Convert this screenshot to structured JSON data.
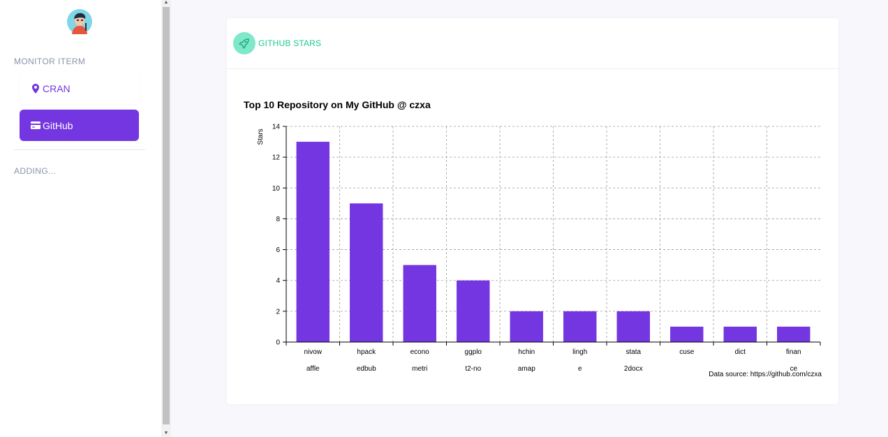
{
  "sidebar": {
    "section_title": "MONITOR ITERM",
    "items": [
      {
        "label": "CRAN",
        "icon": "map-marker-icon",
        "active": false
      },
      {
        "label": "GitHub",
        "icon": "credit-card-icon",
        "active": true
      }
    ],
    "footer_title": "ADDING..."
  },
  "card": {
    "title": "GITHUB STARS",
    "icon": "rocket-icon"
  },
  "colors": {
    "accent": "#7336e0",
    "header_green": "#1dc992",
    "header_icon_bg": "#7ee8c9"
  },
  "chart_data": {
    "type": "bar",
    "title": "Top 10 Repository on My GitHub @ czxa",
    "xlabel": "",
    "ylabel": "Stars",
    "ylim": [
      0,
      14
    ],
    "yticks": [
      0,
      2,
      4,
      6,
      8,
      10,
      12,
      14
    ],
    "categories": [
      [
        "nivow",
        "affle"
      ],
      [
        "hpack",
        "edbub"
      ],
      [
        "econo",
        "metri"
      ],
      [
        "ggplo",
        "t2-no"
      ],
      [
        "hchin",
        "amap"
      ],
      [
        "lingh",
        "e"
      ],
      [
        "stata",
        "2docx"
      ],
      [
        "cuse"
      ],
      [
        "dict"
      ],
      [
        "finan",
        "ce"
      ]
    ],
    "values": [
      13,
      9,
      5,
      4,
      2,
      2,
      2,
      1,
      1,
      1
    ],
    "bar_color": "#7336e0",
    "grid": true,
    "caption": "Data source: https://github.com/czxa"
  }
}
